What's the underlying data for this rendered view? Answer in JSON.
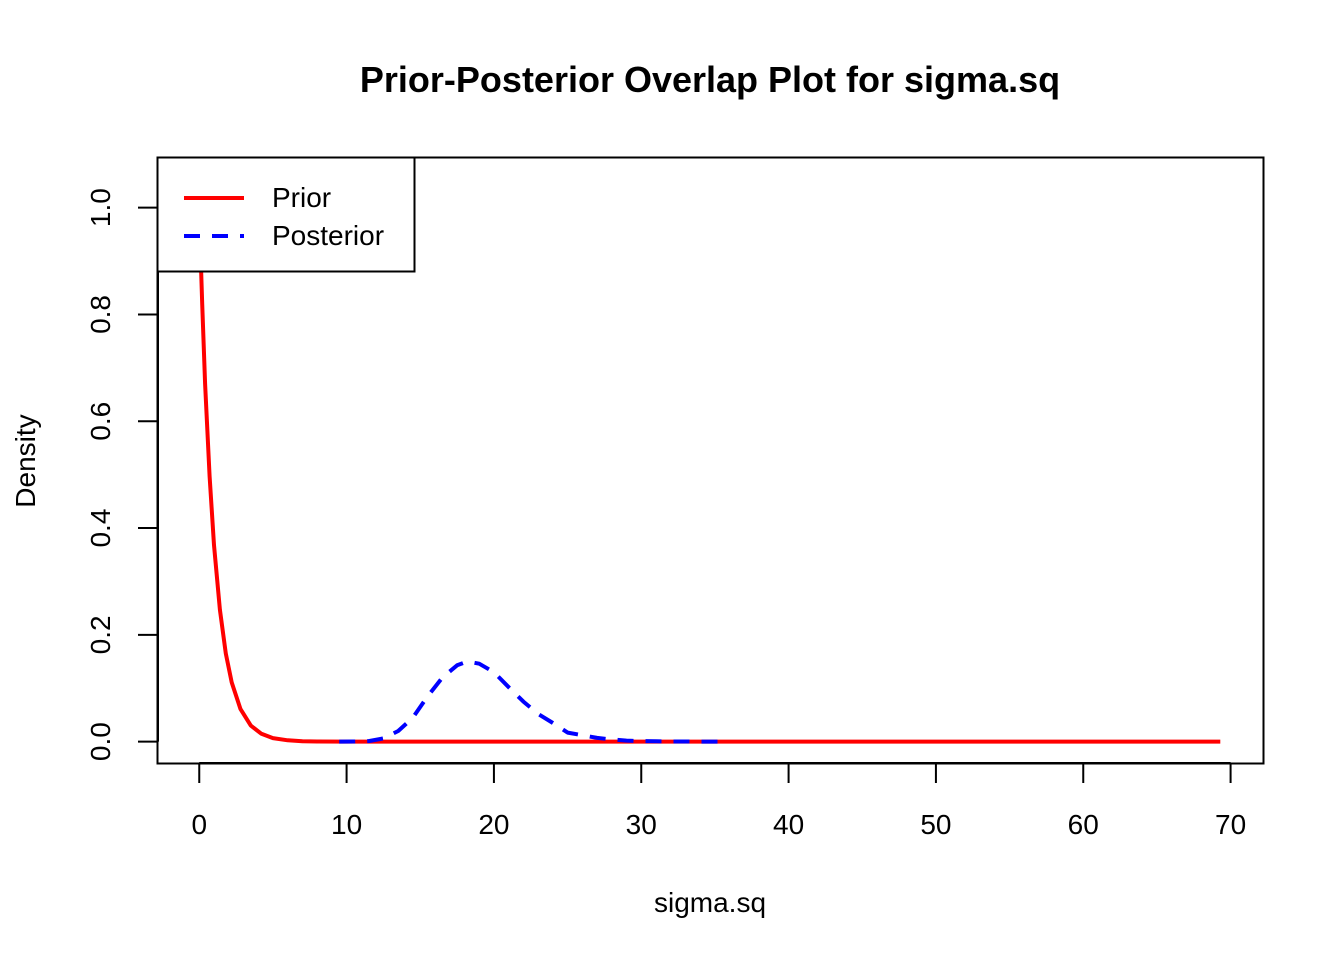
{
  "chart_data": {
    "type": "line",
    "title": "Prior-Posterior Overlap Plot for sigma.sq",
    "xlabel": "sigma.sq",
    "ylabel": "Density",
    "xlim": [
      -2.8,
      72.2
    ],
    "ylim": [
      -0.04,
      1.093
    ],
    "x_ticks": [
      0,
      10,
      20,
      30,
      40,
      50,
      60,
      70
    ],
    "x_tick_labels": [
      "0",
      "10",
      "20",
      "30",
      "40",
      "50",
      "60",
      "70"
    ],
    "y_ticks": [
      0.0,
      0.2,
      0.4,
      0.6,
      0.8,
      1.0
    ],
    "y_tick_labels": [
      "0.0",
      "0.2",
      "0.4",
      "0.6",
      "0.8",
      "1.0"
    ],
    "grid": false,
    "legend_position": "top-left",
    "series": [
      {
        "name": "Prior",
        "color": "#ff0000",
        "line_style": "solid",
        "x": [
          0.0,
          0.07,
          0.2,
          0.4,
          0.7,
          1.0,
          1.4,
          1.8,
          2.2,
          2.8,
          3.5,
          4.2,
          5.0,
          6.0,
          7.0,
          8.0,
          10.0,
          12.0,
          15.0,
          20.0,
          30.0,
          40.0,
          50.0,
          60.0,
          69.3
        ],
        "values": [
          1.0,
          0.93,
          0.82,
          0.67,
          0.497,
          0.368,
          0.247,
          0.165,
          0.111,
          0.061,
          0.03,
          0.015,
          0.0067,
          0.0025,
          0.0009,
          0.0003,
          5e-05,
          0.0,
          0.0,
          0.0,
          0.0,
          0.0,
          0.0,
          0.0,
          0.0
        ]
      },
      {
        "name": "Posterior",
        "color": "#0000ff",
        "line_style": "dashed",
        "x": [
          9.5,
          10.5,
          11.5,
          12.5,
          13.5,
          14.5,
          15.5,
          16.5,
          17.5,
          18.2,
          19.0,
          20.0,
          21.0,
          22.0,
          23.0,
          24.0,
          25.0,
          26.0,
          27.0,
          28.0,
          29.0,
          30.0,
          31.0,
          32.0,
          33.0,
          34.0,
          35.0,
          35.8
        ],
        "values": [
          0.0,
          0.0003,
          0.001,
          0.006,
          0.02,
          0.045,
          0.085,
          0.12,
          0.143,
          0.15,
          0.146,
          0.13,
          0.102,
          0.075,
          0.052,
          0.035,
          0.017,
          0.012,
          0.007,
          0.004,
          0.002,
          0.001,
          0.0006,
          0.0003,
          0.0002,
          0.0001,
          0.0,
          0.0
        ]
      }
    ]
  }
}
